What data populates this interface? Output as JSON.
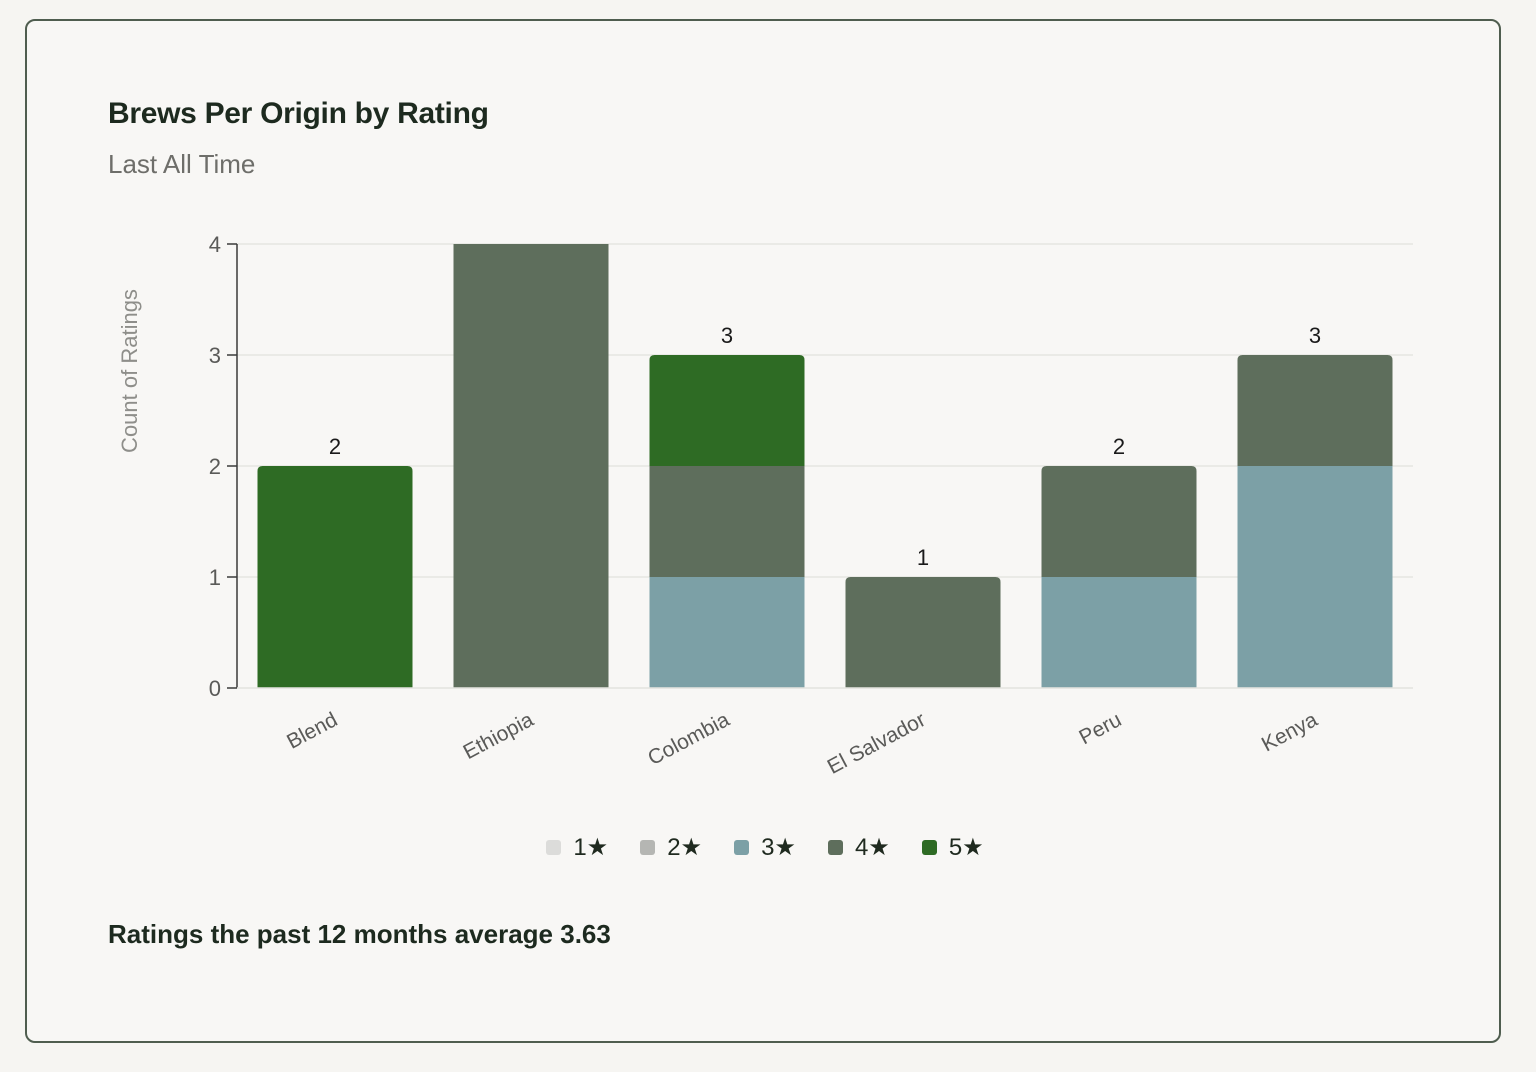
{
  "card": {
    "title": "Brews Per Origin by Rating",
    "subtitle": "Last All Time",
    "footer": "Ratings the past 12 months average 3.63"
  },
  "colors": {
    "1★": "#dcdcda",
    "2★": "#b5b6b3",
    "3★": "#7ca0a6",
    "4★": "#5e6e5c",
    "5★": "#2e6b24",
    "axis": "#3a3a3a",
    "grid": "#e6e5e1",
    "tick_text": "#5a5a58"
  },
  "chart_data": {
    "type": "bar",
    "stacked": true,
    "ylabel": "Count of Ratings",
    "xlabel": "",
    "ylim": [
      0,
      4
    ],
    "yticks": [
      0,
      1,
      2,
      3,
      4
    ],
    "grid": true,
    "legend_position": "bottom",
    "categories": [
      "Blend",
      "Ethiopia",
      "Colombia",
      "El Salvador",
      "Peru",
      "Kenya"
    ],
    "series": [
      {
        "name": "1★",
        "values": [
          0,
          0,
          0,
          0,
          0,
          0
        ]
      },
      {
        "name": "2★",
        "values": [
          0,
          0,
          0,
          0,
          0,
          0
        ]
      },
      {
        "name": "3★",
        "values": [
          0,
          0,
          1,
          0,
          1,
          2
        ]
      },
      {
        "name": "4★",
        "values": [
          0,
          4,
          1,
          1,
          1,
          1
        ]
      },
      {
        "name": "5★",
        "values": [
          2,
          0,
          1,
          0,
          0,
          0
        ]
      }
    ],
    "total_labels": [
      "2",
      "",
      "3",
      "1",
      "2",
      "3"
    ]
  }
}
